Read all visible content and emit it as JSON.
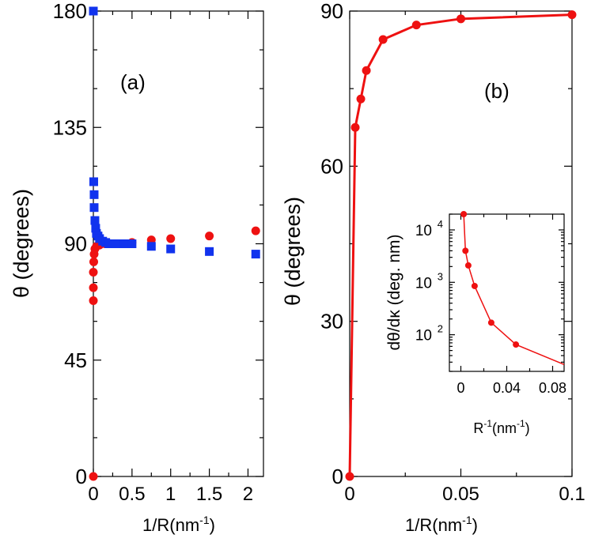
{
  "chart_data": [
    {
      "panel_label": "(a)",
      "type": "scatter",
      "xlabel_main": "1/R(nm",
      "xlabel_sup": "-1",
      "xlabel_close": ")",
      "ylabel": "θ (degrees)",
      "xlim": [
        0,
        2.2
      ],
      "ylim": [
        0,
        180
      ],
      "xticks": [
        0,
        0.5,
        1,
        1.5,
        2
      ],
      "xtick_labels": [
        "0",
        "0.5",
        "1",
        "1.5",
        "2"
      ],
      "yticks": [
        0,
        45,
        90,
        135,
        180
      ],
      "ytick_labels": [
        "0",
        "45",
        "90",
        "135",
        "180"
      ],
      "series": [
        {
          "marker": "circle",
          "color": "#ee1111",
          "points": [
            [
              0,
              0
            ],
            [
              0,
              68
            ],
            [
              0,
              73
            ],
            [
              0,
              79
            ],
            [
              0.005,
              83
            ],
            [
              0.01,
              86
            ],
            [
              0.02,
              88
            ],
            [
              0.04,
              89
            ],
            [
              0.08,
              89.5
            ],
            [
              0.15,
              90
            ],
            [
              0.2,
              90
            ],
            [
              0.3,
              90
            ],
            [
              0.5,
              90.5
            ],
            [
              0.75,
              91.5
            ],
            [
              1.0,
              92
            ],
            [
              1.5,
              93
            ],
            [
              2.1,
              95
            ]
          ]
        },
        {
          "marker": "square",
          "color": "#1133ee",
          "points": [
            [
              0,
              180
            ],
            [
              0.005,
              114
            ],
            [
              0.01,
              109
            ],
            [
              0.01,
              104
            ],
            [
              0.02,
              99
            ],
            [
              0.03,
              96
            ],
            [
              0.04,
              94
            ],
            [
              0.06,
              93
            ],
            [
              0.08,
              92
            ],
            [
              0.12,
              91
            ],
            [
              0.16,
              90.5
            ],
            [
              0.2,
              90
            ],
            [
              0.25,
              90
            ],
            [
              0.3,
              90
            ],
            [
              0.4,
              90
            ],
            [
              0.5,
              90
            ],
            [
              0.75,
              89
            ],
            [
              1.0,
              88
            ],
            [
              1.5,
              87
            ],
            [
              2.1,
              86
            ]
          ]
        }
      ]
    },
    {
      "panel_label": "(b)",
      "type": "line",
      "xlabel_main": "1/R(nm",
      "xlabel_sup": "-1",
      "xlabel_close": ")",
      "ylabel": "θ (degrees)",
      "xlim": [
        0,
        0.1
      ],
      "ylim": [
        0,
        90
      ],
      "xticks": [
        0,
        0.05,
        0.1
      ],
      "xtick_labels": [
        "0",
        "0.05",
        "0.1"
      ],
      "yticks": [
        0,
        30,
        60,
        90
      ],
      "ytick_labels": [
        "0",
        "30",
        "60",
        "90"
      ],
      "color": "#ee1111",
      "points": [
        [
          0,
          0
        ],
        [
          0.0025,
          67.5
        ],
        [
          0.005,
          73
        ],
        [
          0.0075,
          78.5
        ],
        [
          0.015,
          84.5
        ],
        [
          0.03,
          87.3
        ],
        [
          0.05,
          88.5
        ],
        [
          0.1,
          89.3
        ]
      ]
    },
    {
      "type": "line",
      "inset": true,
      "xlabel_main": "R",
      "xlabel_sup": "-1",
      "xlabel_close": "(nm",
      "xlabel_sup2": "-1",
      "xlabel_close2": ")",
      "ylabel": "dθ/dκ (deg. nm)",
      "yscale": "log",
      "xlim": [
        -0.01,
        0.09
      ],
      "ylim": [
        20,
        20000
      ],
      "xticks": [
        0,
        0.04,
        0.08
      ],
      "xtick_labels": [
        "0",
        "0.04",
        "0.08"
      ],
      "yticks": [
        100,
        1000,
        10000
      ],
      "ytick_labels": [
        {
          "base": "10",
          "exp": "2"
        },
        {
          "base": "10",
          "exp": "3"
        },
        {
          "base": "10",
          "exp": "4"
        }
      ],
      "color": "#ee1111",
      "points": [
        [
          0.0025,
          20000
        ],
        [
          0.004,
          4000
        ],
        [
          0.0065,
          2100
        ],
        [
          0.012,
          850
        ],
        [
          0.0265,
          170
        ],
        [
          0.048,
          65
        ],
        [
          0.09,
          27
        ]
      ]
    }
  ]
}
